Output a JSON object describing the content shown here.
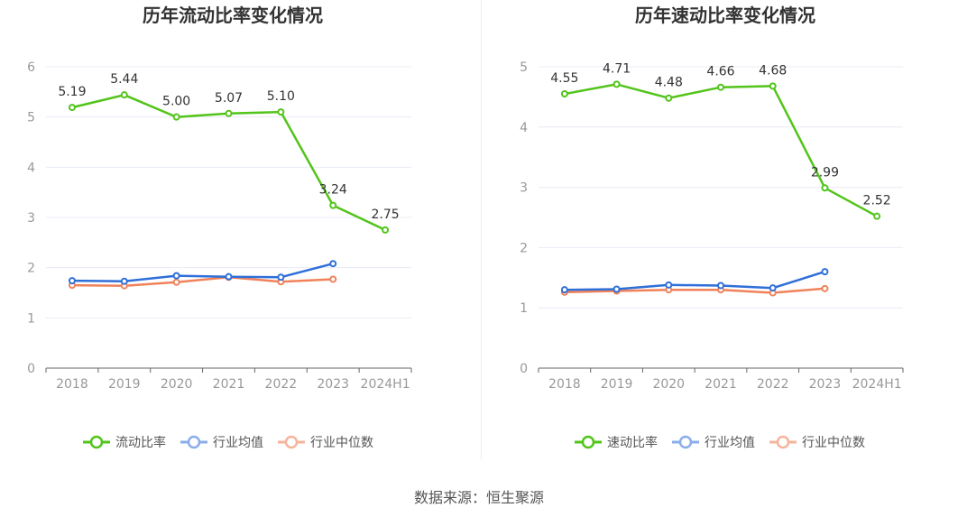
{
  "colors": {
    "main": "#52c41a",
    "avg": "#2f6fd8",
    "median": "#f0825a",
    "legend_avg": "#8aaeea",
    "legend_median": "#f6b49c",
    "axis": "#999999",
    "grid": "#e8ecf4",
    "label": "#333333"
  },
  "source_label": "数据来源：恒生聚源",
  "chart_data": [
    {
      "type": "line",
      "title": "历年流动比率变化情况",
      "categories": [
        "2018",
        "2019",
        "2020",
        "2021",
        "2022",
        "2023",
        "2024H1"
      ],
      "ylim": [
        0,
        6
      ],
      "yticks": [
        "0",
        "1",
        "2",
        "3",
        "4",
        "5",
        "6"
      ],
      "grid": true,
      "legend_position": "bottom",
      "series": [
        {
          "name": "流动比率",
          "values": [
            5.19,
            5.44,
            5.0,
            5.07,
            5.1,
            3.24,
            2.75
          ],
          "labels": [
            "5.19",
            "5.44",
            "5.00",
            "5.07",
            "5.10",
            "3.24",
            "2.75"
          ]
        },
        {
          "name": "行业均值",
          "values": [
            1.74,
            1.73,
            1.84,
            1.82,
            1.81,
            2.08,
            null
          ]
        },
        {
          "name": "行业中位数",
          "values": [
            1.65,
            1.64,
            1.71,
            1.81,
            1.72,
            1.77,
            null
          ]
        }
      ]
    },
    {
      "type": "line",
      "title": "历年速动比率变化情况",
      "categories": [
        "2018",
        "2019",
        "2020",
        "2021",
        "2022",
        "2023",
        "2024H1"
      ],
      "ylim": [
        0,
        5
      ],
      "yticks": [
        "0",
        "1",
        "2",
        "3",
        "4",
        "5"
      ],
      "grid": true,
      "legend_position": "bottom",
      "series": [
        {
          "name": "速动比率",
          "values": [
            4.55,
            4.71,
            4.48,
            4.66,
            4.68,
            2.99,
            2.52
          ],
          "labels": [
            "4.55",
            "4.71",
            "4.48",
            "4.66",
            "4.68",
            "2.99",
            "2.52"
          ]
        },
        {
          "name": "行业均值",
          "values": [
            1.3,
            1.31,
            1.38,
            1.37,
            1.33,
            1.6,
            null
          ]
        },
        {
          "name": "行业中位数",
          "values": [
            1.26,
            1.28,
            1.3,
            1.3,
            1.25,
            1.32,
            null
          ]
        }
      ]
    }
  ]
}
